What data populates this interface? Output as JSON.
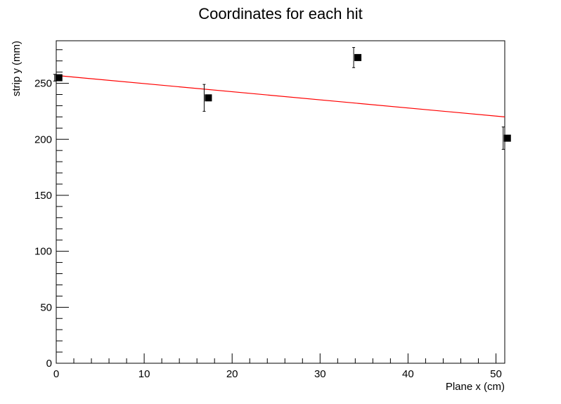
{
  "chart_data": {
    "type": "scatter",
    "title": "Coordinates for each hit",
    "xlabel": "Plane x (cm)",
    "ylabel": "strip  y (mm)",
    "xlim": [
      0,
      51
    ],
    "ylim": [
      0,
      288
    ],
    "grid": false,
    "x_ticks": [
      0,
      10,
      20,
      30,
      40,
      50
    ],
    "y_ticks": [
      0,
      50,
      100,
      150,
      200,
      250
    ],
    "points": [
      {
        "x": 0.3,
        "y": 255,
        "err": 3
      },
      {
        "x": 17.3,
        "y": 237,
        "err": 12
      },
      {
        "x": 34.3,
        "y": 273,
        "err": 9
      },
      {
        "x": 51.3,
        "y": 201,
        "err": 10
      }
    ],
    "fit": {
      "x": [
        0,
        51
      ],
      "y": [
        257,
        220
      ]
    },
    "colors": {
      "points": "#000000",
      "fit": "#ff0000",
      "axes": "#000000"
    }
  }
}
